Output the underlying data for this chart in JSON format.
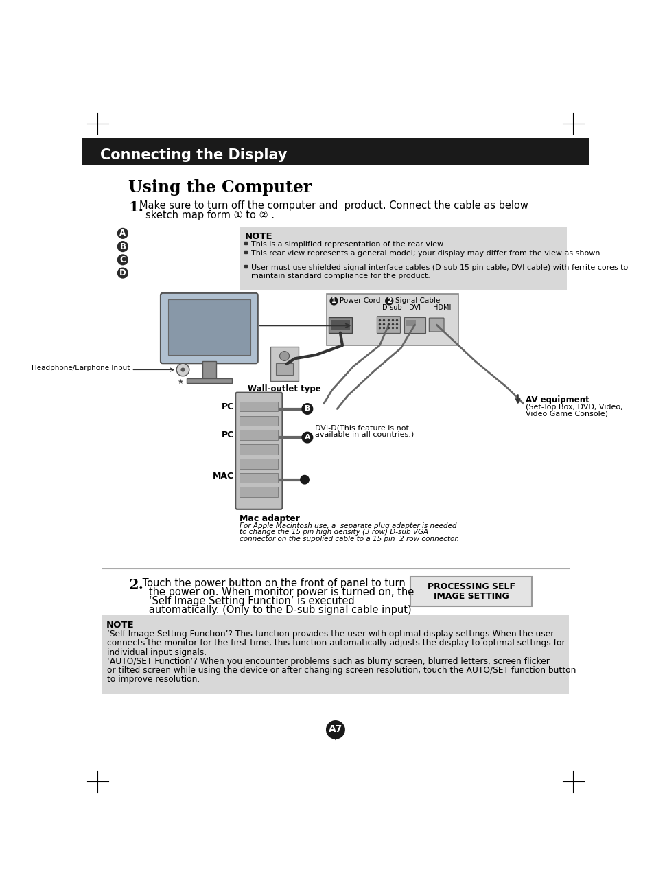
{
  "page_bg": "#ffffff",
  "header_bg": "#1a1a1a",
  "header_text": "Connecting the Display",
  "header_text_color": "#ffffff",
  "section_title": "Using the Computer",
  "note_bg": "#d8d8d8",
  "note_lines": [
    "This is a simplified representation of the rear view.",
    "This rear view represents a general model; your display may differ from the view as shown.",
    "User must use shielded signal interface cables (D-sub 15 pin cable, DVI cable) with ferrite cores to maintain standard compliance for the product."
  ],
  "labels_left": [
    "A",
    "B",
    "C",
    "D"
  ],
  "page_number": "A7",
  "border_color": "#000000",
  "connector_label1": "Power Cord",
  "connector_label2": "Signal Cable",
  "connector_sub1": "D-sub",
  "connector_sub2": "DVI",
  "connector_sub3": "HDMI",
  "wall_label": "Wall-outlet type",
  "pc_label1": "PC",
  "pc_label2": "PC",
  "mac_label": "MAC",
  "dvi_label1": "DVI-D(This feature is not",
  "dvi_label2": "available in all countries.)",
  "av_label_bold": "AV equipment",
  "av_label_small1": "(Set-Top Box, DVD, Video,",
  "av_label_small2": "Video Game Console)",
  "mac_adapter_title": "Mac adapter",
  "mac_adapter_text1": "For Apple Macintosh use, a  separate plug adapter is needed",
  "mac_adapter_text2": "to change the 15 pin high density (3 row) D-sub VGA",
  "mac_adapter_text3": "connector on the supplied cable to a 15 pin  2 row connector.",
  "headphone_label": "Headphone/Earphone Input",
  "proc_text1": "PROCESSING SELF",
  "proc_text2": "IMAGE SETTING",
  "step1_line1": "Make sure to turn off the computer and  product. Connect the cable as below",
  "step1_line2": "sketch map form ① to ② .",
  "step2_lines": [
    " Touch the power button on the front of panel to turn",
    "   the power on. When monitor power is turned on, the",
    "   ‘Self Image Setting Function’ is executed",
    "   automatically. (Only to the D-sub signal cable input)"
  ],
  "bn_bold1": "‘Self Image Setting Function’?",
  "bn_norm1": " This function provides the user with optimal display settings.When the user",
  "bn_line2": "connects the monitor for the first time, this function automatically adjusts the display to optimal settings for",
  "bn_line3": "individual input signals.",
  "bn_bold2": "‘AUTO/SET Function’?",
  "bn_norm2": " When you encounter problems such as blurry screen, blurred letters, screen flicker",
  "bn_line5": "or tilted screen while using the device or after changing screen resolution, touch the AUTO/SET function button",
  "bn_line6": "to improve resolution."
}
